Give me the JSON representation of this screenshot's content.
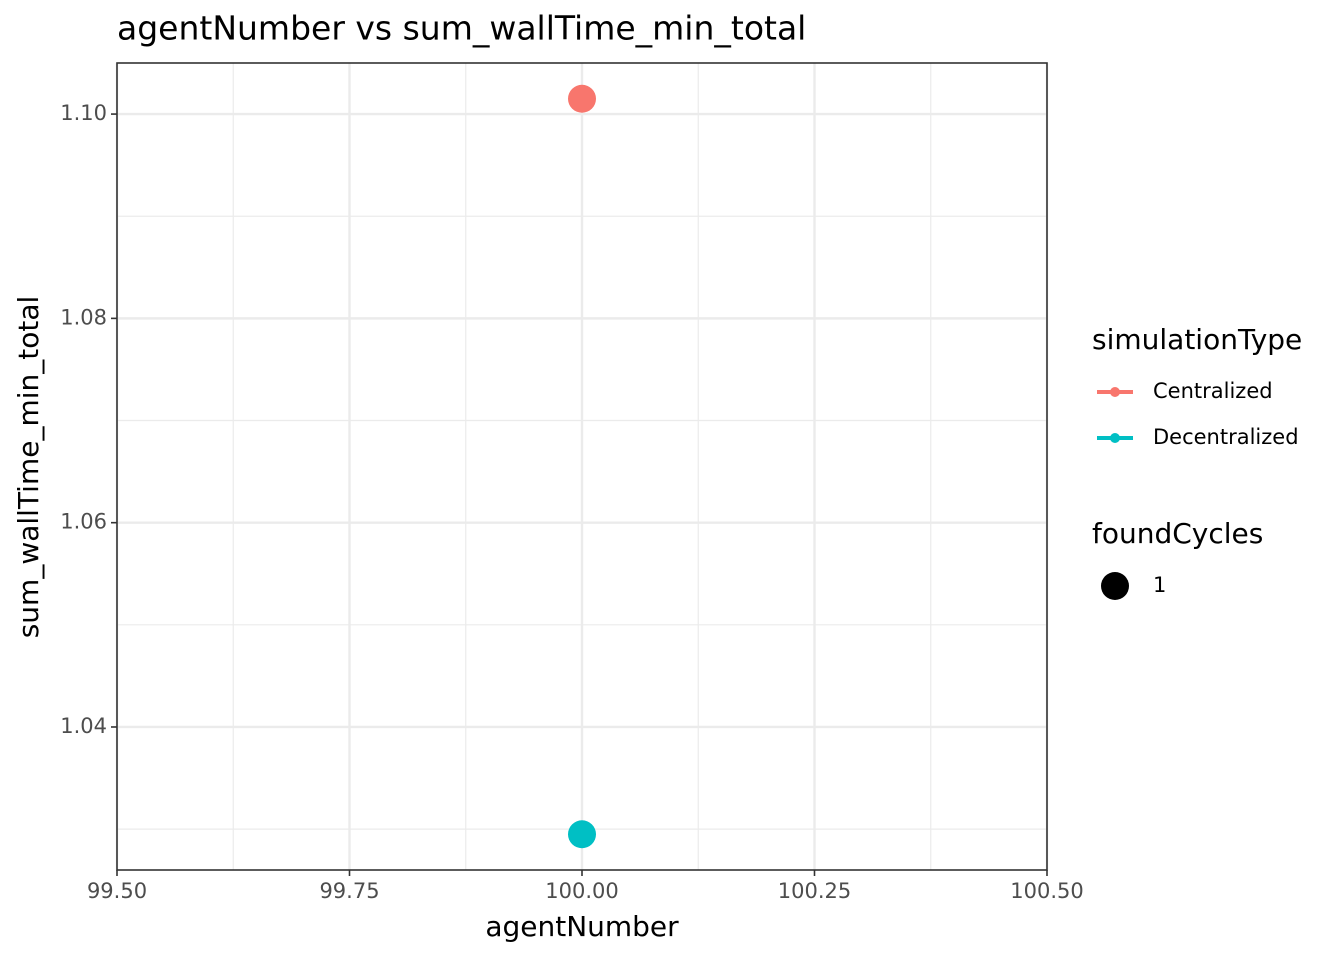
{
  "chart_data": {
    "type": "scatter",
    "title": "agentNumber  vs  sum_wallTime_min_total",
    "x_label": "agentNumber",
    "y_label": "sum_wallTime_min_total",
    "xlim": [
      99.5,
      100.5
    ],
    "xticks": [
      {
        "value": 99.5,
        "label": "99.50"
      },
      {
        "value": 99.75,
        "label": "99.75"
      },
      {
        "value": 100,
        "label": "100.00"
      },
      {
        "value": 100.25,
        "label": "100.25"
      },
      {
        "value": 100.5,
        "label": "100.50"
      }
    ],
    "x_minor_ticks": [
      99.625,
      99.875,
      100.125,
      100.375
    ],
    "ylim": [
      1.026,
      1.105
    ],
    "yticks": [
      {
        "value": 1.04,
        "label": "1.04"
      },
      {
        "value": 1.06,
        "label": "1.06"
      },
      {
        "value": 1.08,
        "label": "1.08"
      },
      {
        "value": 1.1,
        "label": "1.10"
      }
    ],
    "y_minor_ticks": [
      1.03,
      1.05,
      1.07,
      1.09
    ],
    "grid": true,
    "legend_title": "simulationType",
    "series": [
      {
        "name": "Centralized",
        "color": "#F8766D",
        "x": [
          100
        ],
        "values": [
          1.1015
        ],
        "size": [
          1
        ]
      },
      {
        "name": "Decentralized",
        "color": "#00BFC4",
        "x": [
          100
        ],
        "values": [
          1.0295
        ],
        "size": [
          1
        ]
      }
    ],
    "size_legend": {
      "title": "foundCycles",
      "values": [
        1
      ]
    }
  }
}
